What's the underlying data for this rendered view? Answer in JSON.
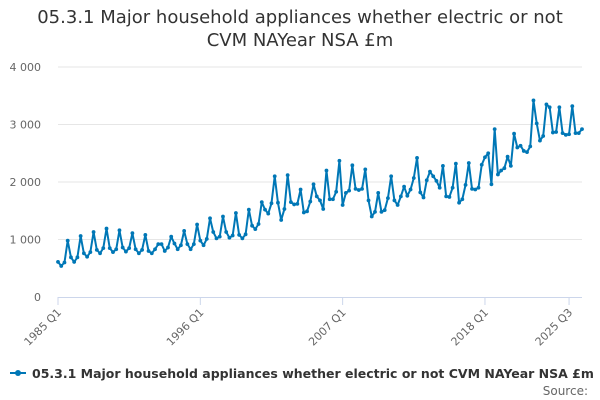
{
  "title": {
    "line1": "05.3.1 Major household appliances whether electric or not",
    "line2": "CVM NAYear NSA £m"
  },
  "legend": {
    "label": "05.3.1 Major household appliances whether electric or not CVM NAYear NSA £m"
  },
  "source": {
    "label": "Source:"
  },
  "colors": {
    "series": "#0077b6",
    "grid": "#e6e6e6",
    "axis": "#ccd6eb"
  },
  "chart_data": {
    "type": "line",
    "title": "05.3.1 Major household appliances whether electric or not CVM NAYear NSA £m",
    "xlabel": "",
    "ylabel": "",
    "ylim": [
      0,
      4000
    ],
    "yticks": [
      0,
      1000,
      2000,
      3000,
      4000
    ],
    "ytick_labels": [
      "0",
      "1 000",
      "2 000",
      "3 000",
      "4 000"
    ],
    "xtick_labels": [
      "1985 Q1",
      "1996 Q1",
      "2007 Q1",
      "2018 Q1",
      "2025 Q3"
    ],
    "xtick_indices": [
      0,
      44,
      88,
      132,
      158
    ],
    "grid": true,
    "legend_position": "bottom",
    "series": [
      {
        "name": "05.3.1 Major household appliances whether electric or not CVM NAYear NSA £m",
        "start": "1985 Q1",
        "frequency": "quarterly",
        "values": [
          610,
          540,
          600,
          980,
          690,
          610,
          690,
          1060,
          760,
          700,
          780,
          1130,
          820,
          760,
          850,
          1190,
          850,
          780,
          830,
          1160,
          860,
          790,
          850,
          1110,
          830,
          760,
          820,
          1080,
          800,
          760,
          830,
          920,
          920,
          800,
          860,
          1050,
          930,
          830,
          900,
          1150,
          920,
          830,
          920,
          1260,
          980,
          900,
          1010,
          1370,
          1130,
          1020,
          1050,
          1400,
          1130,
          1030,
          1070,
          1460,
          1080,
          1020,
          1090,
          1520,
          1240,
          1180,
          1270,
          1650,
          1520,
          1450,
          1630,
          2100,
          1640,
          1340,
          1530,
          2120,
          1650,
          1610,
          1620,
          1870,
          1470,
          1490,
          1660,
          1960,
          1750,
          1680,
          1530,
          2200,
          1700,
          1700,
          1830,
          2370,
          1600,
          1810,
          1850,
          2290,
          1880,
          1860,
          1880,
          2220,
          1680,
          1400,
          1480,
          1810,
          1480,
          1510,
          1720,
          2100,
          1680,
          1600,
          1750,
          1920,
          1760,
          1870,
          2070,
          2420,
          1820,
          1730,
          2030,
          2180,
          2100,
          2020,
          1900,
          2280,
          1750,
          1740,
          1900,
          2320,
          1640,
          1700,
          1950,
          2330,
          1880,
          1870,
          1900,
          2300,
          2430,
          2500,
          1960,
          2920,
          2130,
          2200,
          2240,
          2440,
          2280,
          2840,
          2600,
          2630,
          2540,
          2520,
          2620,
          3420,
          3020,
          2720,
          2800,
          3350,
          3300,
          2860,
          2870,
          3300,
          2850,
          2820,
          2830,
          3320,
          2850,
          2850,
          2920
        ]
      }
    ]
  }
}
